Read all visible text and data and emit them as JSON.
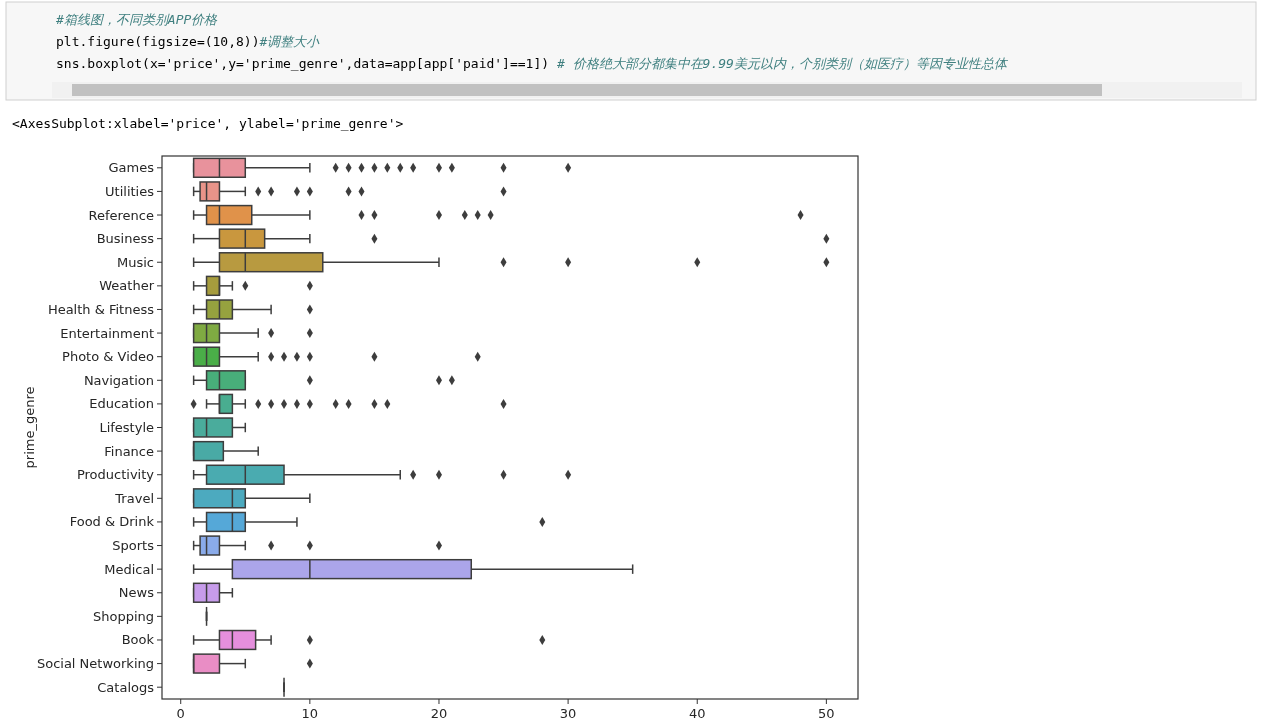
{
  "chart_data": {
    "type": "box",
    "orientation": "horizontal",
    "ylabel": "prime_genre",
    "annotations": [
      "#箱线图，不同类别APP价格",
      "plt.figure(figsize=(10,8))#调整大小",
      "sns.boxplot(x='price',y='prime_genre',data=app[app['paid']==1]) # 价格绝大部分都集中在9.99美元以内，个别类别（如医疗）等因专业性总体",
      "<AxesSubplot:xlabel='price', ylabel='prime_genre'>"
    ],
    "categories": [
      "Games",
      "Utilities",
      "Reference",
      "Business",
      "Music",
      "Weather",
      "Health & Fitness",
      "Entertainment",
      "Photo & Video",
      "Navigation",
      "Education",
      "Lifestyle",
      "Finance",
      "Productivity",
      "Travel",
      "Food & Drink",
      "Sports",
      "Medical",
      "News",
      "Shopping",
      "Book",
      "Social Networking",
      "Catalogs"
    ],
    "colors": [
      "#e8929c",
      "#e89489",
      "#e0924a",
      "#c9973e",
      "#b89a40",
      "#a69c3d",
      "#96a23f",
      "#7faa42",
      "#4aae48",
      "#48ae7a",
      "#49ad90",
      "#4aac9c",
      "#49aaa5",
      "#4aabb0",
      "#4caabf",
      "#55a8d8",
      "#8aabea",
      "#aba5ea",
      "#c79ceb",
      null,
      "#e58fdd",
      "#e98dc5",
      null
    ],
    "boxes": [
      {
        "low": 1,
        "q1": 1,
        "median": 3,
        "q3": 5,
        "high": 10,
        "outliers": [
          12,
          13,
          14,
          15,
          16,
          17,
          18,
          20,
          21,
          25,
          30
        ]
      },
      {
        "low": 1,
        "q1": 1.5,
        "median": 2,
        "q3": 3,
        "high": 5,
        "outliers": [
          6,
          7,
          9,
          10,
          13,
          14,
          25
        ]
      },
      {
        "low": 1,
        "q1": 2,
        "median": 3,
        "q3": 5.5,
        "high": 10,
        "outliers": [
          14,
          15,
          20,
          22,
          23,
          24,
          48
        ]
      },
      {
        "low": 1,
        "q1": 3,
        "median": 5,
        "q3": 6.5,
        "high": 10,
        "outliers": [
          15,
          50
        ]
      },
      {
        "low": 1,
        "q1": 3,
        "median": 5,
        "q3": 11,
        "high": 20,
        "outliers": [
          25,
          30,
          40,
          50
        ]
      },
      {
        "low": 1,
        "q1": 2,
        "median": 3,
        "q3": 3,
        "high": 4,
        "outliers": [
          5,
          10
        ]
      },
      {
        "low": 1,
        "q1": 2,
        "median": 3,
        "q3": 4,
        "high": 7,
        "outliers": [
          10
        ]
      },
      {
        "low": 1,
        "q1": 1,
        "median": 2,
        "q3": 3,
        "high": 6,
        "outliers": [
          7,
          10
        ]
      },
      {
        "low": 1,
        "q1": 1,
        "median": 2,
        "q3": 3,
        "high": 6,
        "outliers": [
          7,
          8,
          9,
          10,
          15,
          23
        ]
      },
      {
        "low": 1,
        "q1": 2,
        "median": 3,
        "q3": 5,
        "high": 5,
        "outliers": [
          10,
          20,
          21
        ]
      },
      {
        "low": 2,
        "q1": 3,
        "median": 3,
        "q3": 4,
        "high": 5,
        "outliers": [
          1,
          6,
          7,
          8,
          9,
          10,
          12,
          13,
          15,
          16,
          25
        ]
      },
      {
        "low": 1,
        "q1": 1,
        "median": 2,
        "q3": 4,
        "high": 5
      },
      {
        "low": 1,
        "q1": 1,
        "median": 1,
        "q3": 3.3,
        "high": 6
      },
      {
        "low": 1,
        "q1": 2,
        "median": 5,
        "q3": 8,
        "high": 17,
        "outliers": [
          18,
          20,
          25,
          30
        ]
      },
      {
        "low": 1,
        "q1": 1,
        "median": 4,
        "q3": 5,
        "high": 10
      },
      {
        "low": 1,
        "q1": 2,
        "median": 4,
        "q3": 5,
        "high": 9,
        "outliers": [
          28
        ]
      },
      {
        "low": 1,
        "q1": 1.5,
        "median": 2,
        "q3": 3,
        "high": 5,
        "outliers": [
          7,
          10,
          20
        ]
      },
      {
        "low": 1,
        "q1": 4,
        "median": 10,
        "q3": 22.5,
        "high": 35
      },
      {
        "low": 1,
        "q1": 1,
        "median": 2,
        "q3": 3,
        "high": 4
      },
      {
        "low": 2,
        "q1": 2,
        "median": 2,
        "q3": 2,
        "high": 2
      },
      {
        "low": 1,
        "q1": 3,
        "median": 4,
        "q3": 5.8,
        "high": 7,
        "outliers": [
          10,
          28
        ]
      },
      {
        "low": 1,
        "q1": 1,
        "median": 1,
        "q3": 3,
        "high": 5,
        "outliers": [
          10
        ]
      },
      {
        "low": 8,
        "q1": 8,
        "median": 8,
        "q3": 8,
        "high": 8
      }
    ],
    "xlim": [
      -1.45,
      52.45
    ],
    "xticks": [
      0,
      10,
      20,
      30,
      40,
      50
    ]
  }
}
